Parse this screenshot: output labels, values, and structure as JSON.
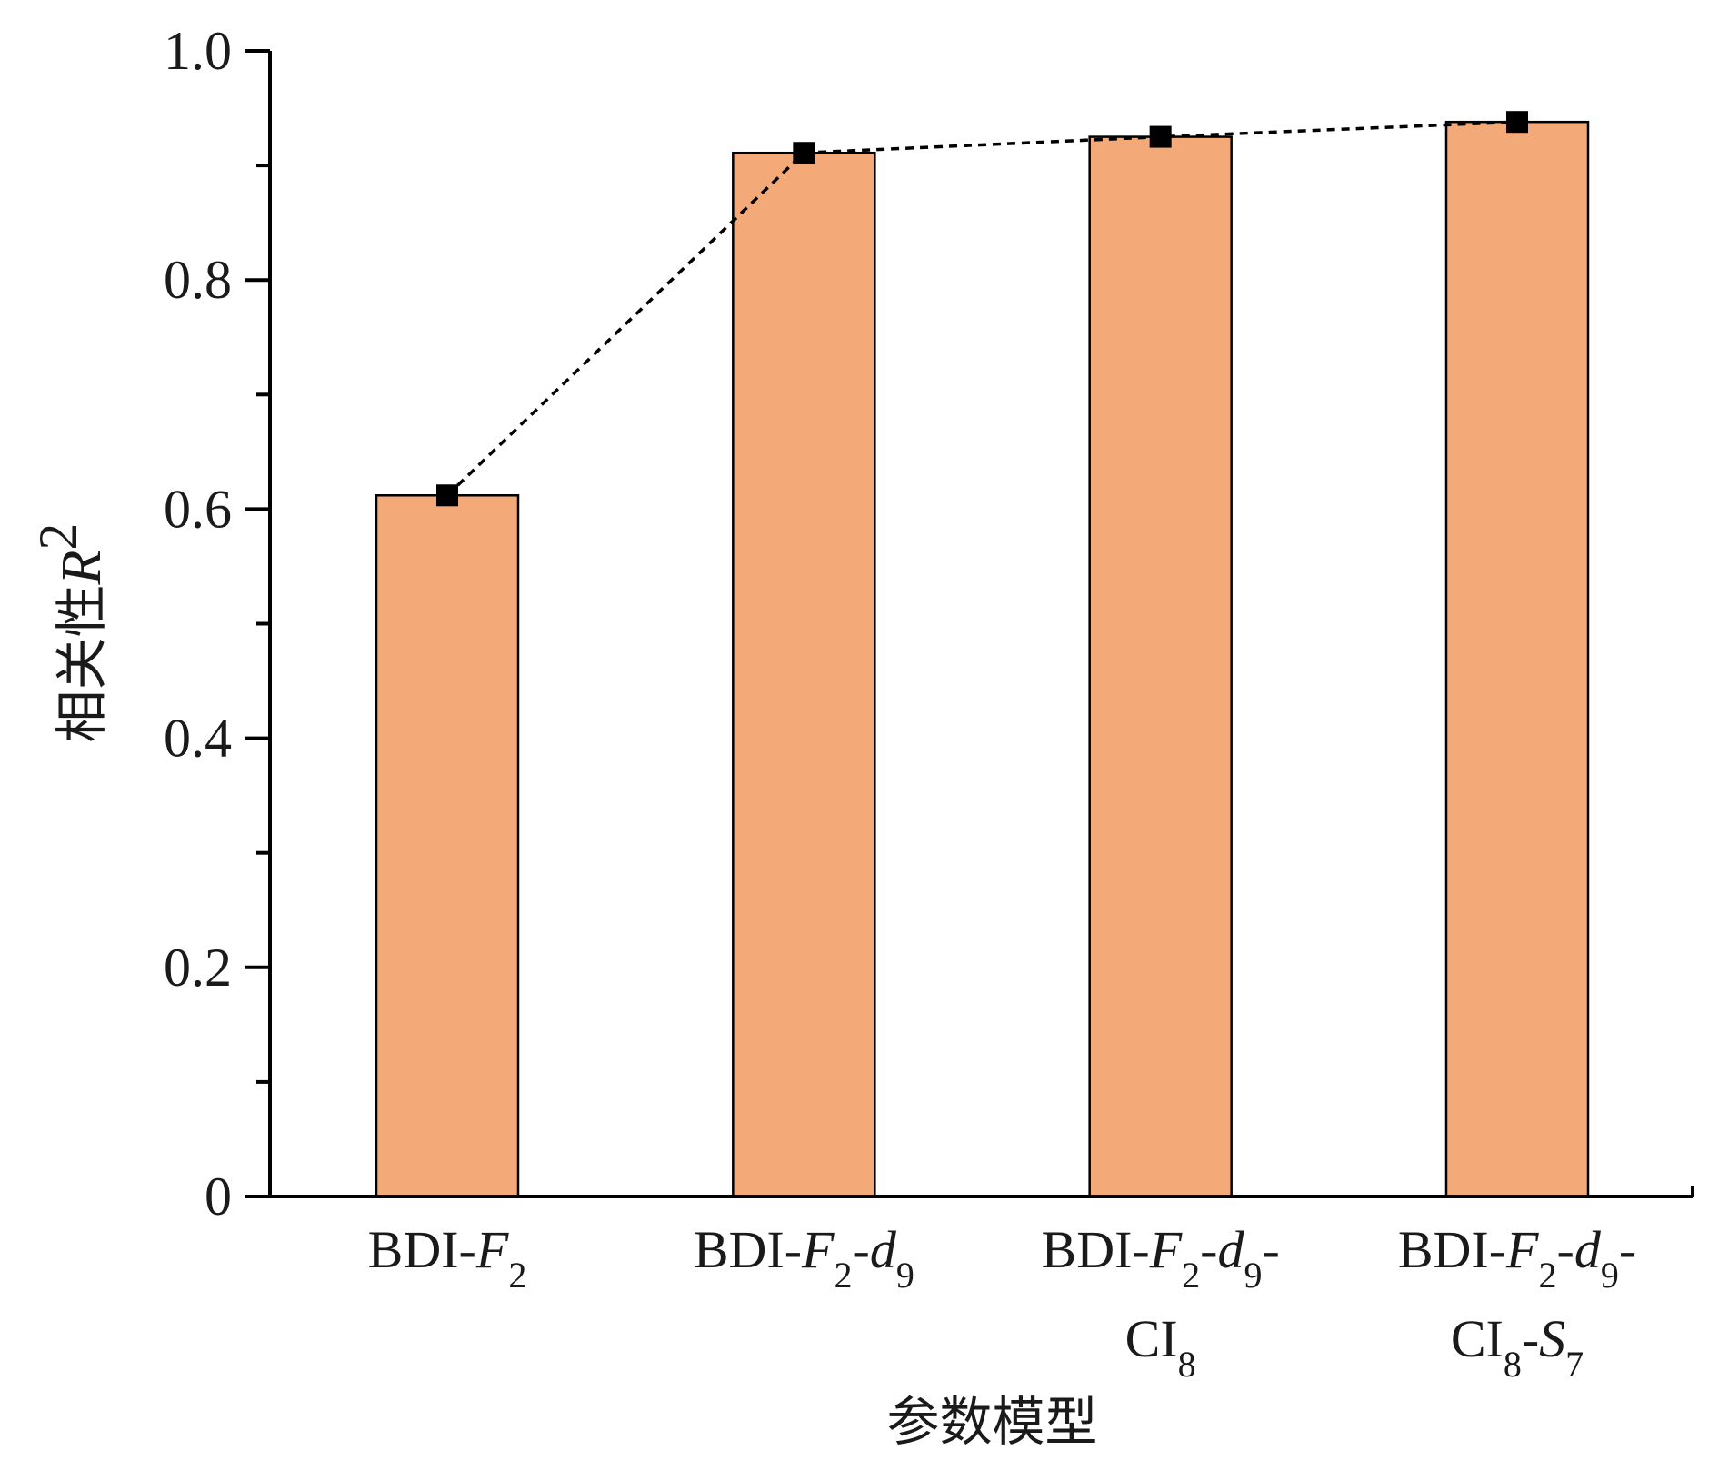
{
  "chart_data": {
    "type": "bar",
    "categories": [
      {
        "lines": [
          [
            {
              "t": "BDI-"
            },
            {
              "t": "F",
              "i": true
            },
            {
              "t": "2",
              "sub": true
            }
          ]
        ]
      },
      {
        "lines": [
          [
            {
              "t": "BDI-"
            },
            {
              "t": "F",
              "i": true
            },
            {
              "t": "2",
              "sub": true
            },
            {
              "t": "-"
            },
            {
              "t": "d",
              "i": true
            },
            {
              "t": "9",
              "sub": true
            }
          ]
        ]
      },
      {
        "lines": [
          [
            {
              "t": "BDI-"
            },
            {
              "t": "F",
              "i": true
            },
            {
              "t": "2",
              "sub": true
            },
            {
              "t": "-"
            },
            {
              "t": "d",
              "i": true
            },
            {
              "t": "9",
              "sub": true
            },
            {
              "t": "-"
            }
          ],
          [
            {
              "t": "CI"
            },
            {
              "t": "8",
              "sub": true
            }
          ]
        ]
      },
      {
        "lines": [
          [
            {
              "t": "BDI-"
            },
            {
              "t": "F",
              "i": true
            },
            {
              "t": "2",
              "sub": true
            },
            {
              "t": "-"
            },
            {
              "t": "d",
              "i": true
            },
            {
              "t": "9",
              "sub": true
            },
            {
              "t": "-"
            }
          ],
          [
            {
              "t": "CI"
            },
            {
              "t": "8",
              "sub": true
            },
            {
              "t": "-"
            },
            {
              "t": "S",
              "i": true
            },
            {
              "t": "7",
              "sub": true
            }
          ]
        ]
      }
    ],
    "values": [
      0.612,
      0.911,
      0.925,
      0.938
    ],
    "line_overlay": {
      "style": "dashed",
      "marker": "square",
      "color": "#000000",
      "values": [
        0.612,
        0.911,
        0.925,
        0.938
      ]
    },
    "xlabel": "参数模型",
    "ylabel": {
      "text": "相关性",
      "var": "R",
      "sup": "2"
    },
    "ylim": [
      0,
      1.0
    ],
    "yticks": [
      0,
      0.2,
      0.4,
      0.6,
      0.8,
      1.0
    ],
    "ytick_labels": [
      "0",
      "0.2",
      "0.4",
      "0.6",
      "0.8",
      "1.0"
    ],
    "grid": false,
    "bar_color": "#f4a979",
    "bar_edge_color": "#000000"
  }
}
